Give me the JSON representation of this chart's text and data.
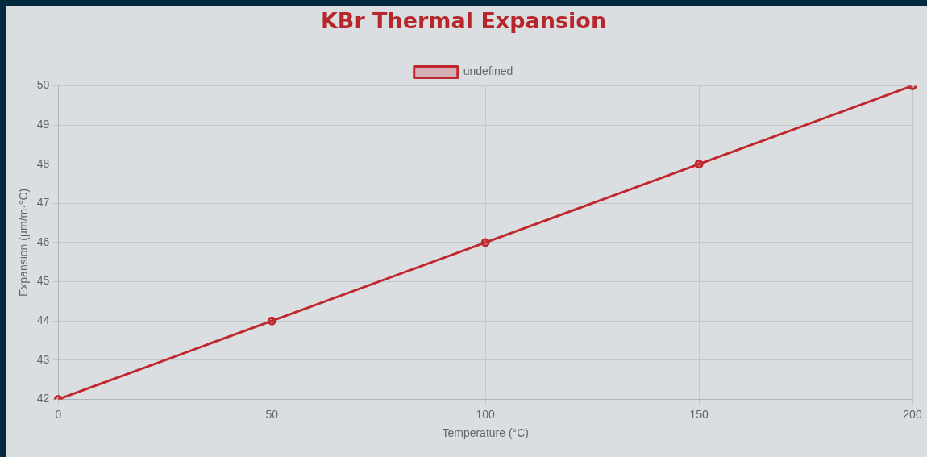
{
  "chart_data": {
    "type": "line",
    "title": "KBr Thermal Expansion",
    "xlabel": "Temperature (°C)",
    "ylabel": "Expansion (µm/m·°C)",
    "categories": [
      "0",
      "50",
      "100",
      "150",
      "200"
    ],
    "series": [
      {
        "name": "undefined",
        "color": "#c0282d",
        "values": [
          42,
          44,
          46,
          48,
          50
        ]
      }
    ],
    "ylim": [
      42,
      50
    ],
    "yticks": [
      42,
      43,
      44,
      45,
      46,
      47,
      48,
      49,
      50
    ],
    "grid": true,
    "legend": "top",
    "marker": "circle",
    "line_style": "solid"
  }
}
